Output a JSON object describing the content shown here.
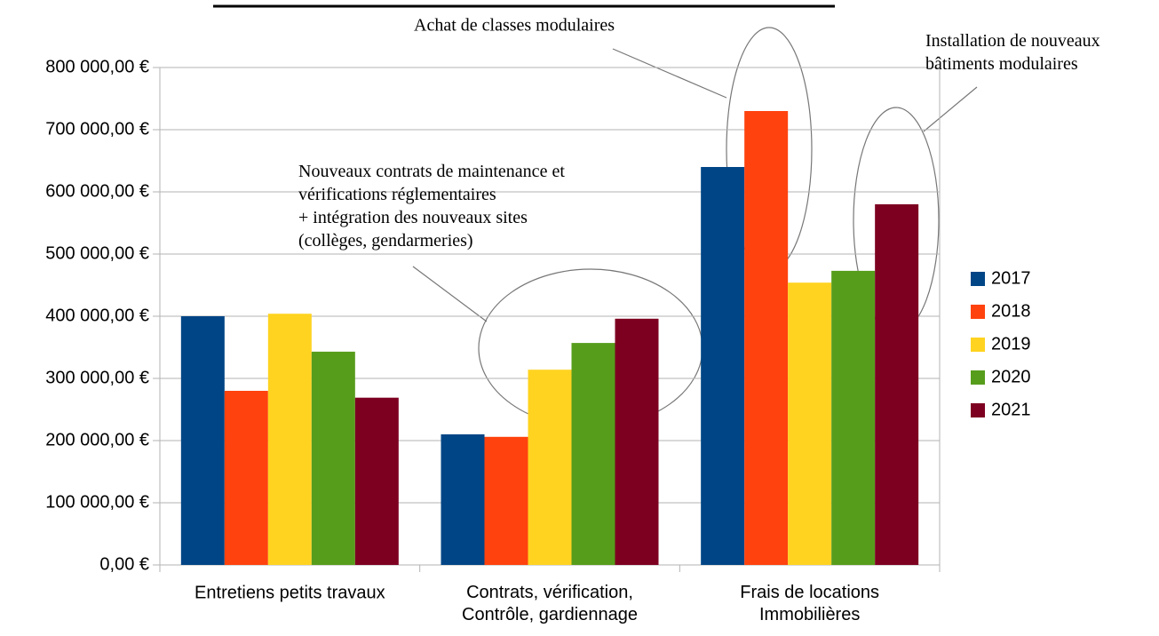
{
  "chart_data": {
    "type": "bar",
    "categories": [
      "Entretiens petits travaux",
      "Contrats, vérification,\nContrôle, gardiennage",
      "Frais de locations\nImmobilières"
    ],
    "series": [
      {
        "name": "2017",
        "color": "#004586",
        "values": [
          400000,
          210000,
          640000
        ]
      },
      {
        "name": "2018",
        "color": "#ff420e",
        "values": [
          280000,
          206000,
          730000
        ]
      },
      {
        "name": "2019",
        "color": "#ffd320",
        "values": [
          404000,
          314000,
          454000
        ]
      },
      {
        "name": "2020",
        "color": "#579d1c",
        "values": [
          343000,
          357000,
          473000
        ]
      },
      {
        "name": "2021",
        "color": "#7e0021",
        "values": [
          269000,
          396000,
          580000
        ]
      }
    ],
    "ylim": [
      0,
      800000
    ],
    "yticks": [
      {
        "value": 0,
        "label": "0,00 €"
      },
      {
        "value": 100000,
        "label": "100 000,00 €"
      },
      {
        "value": 200000,
        "label": "200 000,00 €"
      },
      {
        "value": 300000,
        "label": "300 000,00 €"
      },
      {
        "value": 400000,
        "label": "400 000,00 €"
      },
      {
        "value": 500000,
        "label": "500 000,00 €"
      },
      {
        "value": 600000,
        "label": "600 000,00 €"
      },
      {
        "value": 700000,
        "label": "700 000,00 €"
      },
      {
        "value": 800000,
        "label": "800 000,00 €"
      }
    ],
    "legend": "right",
    "annotations": [
      "Achat de classes modulaires",
      "Installation de nouveaux\nbâtiments modulaires",
      "Nouveaux contrats de maintenance et\nvérifications réglementaires\n+ intégration des nouveaux sites\n(collèges, gendarmeries)"
    ]
  }
}
